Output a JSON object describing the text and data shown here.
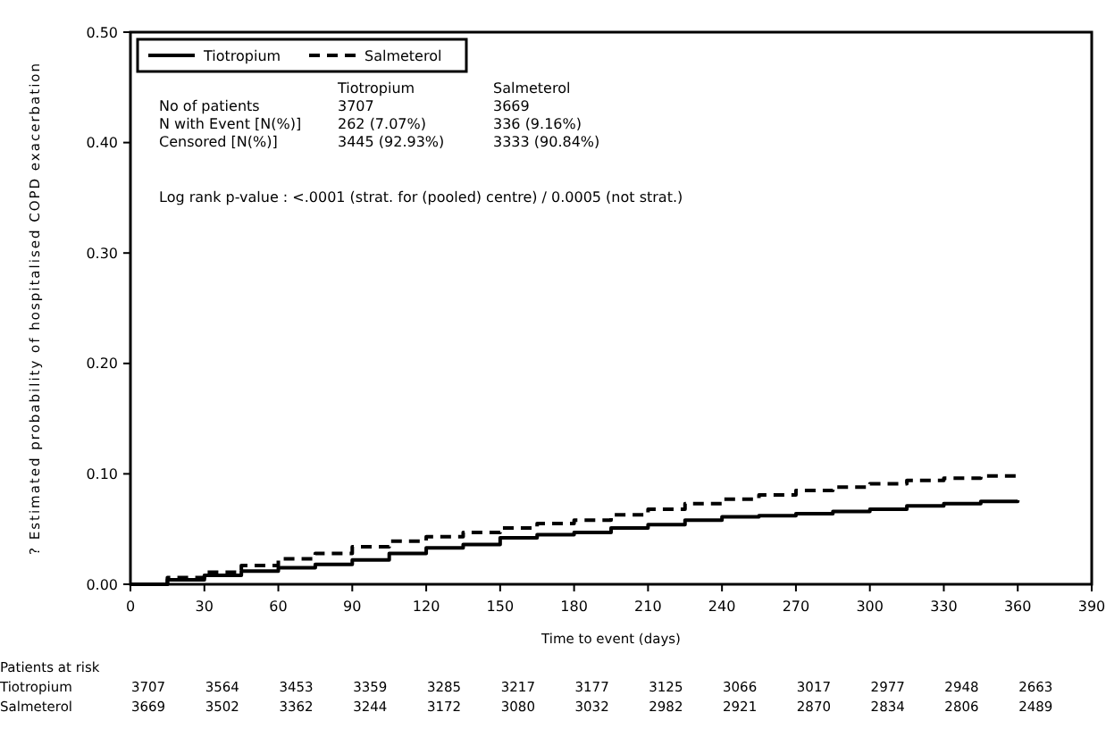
{
  "chart_data": {
    "type": "step",
    "xlabel": "Time to event (days)",
    "ylabel": "? Estimated probability of hospitalised COPD exacerbation",
    "x": [
      0,
      15,
      30,
      45,
      60,
      75,
      90,
      105,
      120,
      135,
      150,
      165,
      180,
      195,
      210,
      225,
      240,
      255,
      270,
      285,
      300,
      315,
      330,
      345,
      360
    ],
    "series": [
      {
        "name": "Tiotropium",
        "color": "#000000",
        "line_style": "solid",
        "values": [
          0,
          0.004,
          0.008,
          0.012,
          0.015,
          0.018,
          0.022,
          0.028,
          0.033,
          0.036,
          0.042,
          0.045,
          0.047,
          0.051,
          0.054,
          0.058,
          0.061,
          0.062,
          0.064,
          0.066,
          0.068,
          0.071,
          0.073,
          0.075,
          0.076
        ]
      },
      {
        "name": "Salmeterol",
        "color": "#000000",
        "line_style": "dashed",
        "values": [
          0,
          0.006,
          0.011,
          0.017,
          0.023,
          0.028,
          0.034,
          0.039,
          0.043,
          0.047,
          0.051,
          0.055,
          0.058,
          0.063,
          0.068,
          0.073,
          0.077,
          0.081,
          0.085,
          0.088,
          0.091,
          0.094,
          0.096,
          0.098,
          0.1
        ]
      }
    ],
    "xlim": [
      0,
      390
    ],
    "xticks": [
      0,
      30,
      60,
      90,
      120,
      150,
      180,
      210,
      240,
      270,
      300,
      330,
      360,
      390
    ],
    "ylim": [
      0,
      0.5
    ],
    "yticks": [
      {
        "value": 0,
        "label": "0.00"
      },
      {
        "value": 0.1,
        "label": "0.10"
      },
      {
        "value": 0.2,
        "label": "0.20"
      },
      {
        "value": 0.3,
        "label": "0.30"
      },
      {
        "value": 0.4,
        "label": "0.40"
      },
      {
        "value": 0.5,
        "label": "0.50"
      }
    ],
    "legend": "top left",
    "grid": false,
    "annotations": [
      "\tTiotropium\tSalmeterol",
      "No of patients\t3707\t3669",
      "N with Event [N(%)]\t262 (7.07%)\t336 (9.16%)",
      "Censored [N(%)]\t3445 (92.93%)\t3333 (90.84%)",
      "Log rank p-value : <.0001 (strat. for (pooled) centre) / 0.0005 (not strat.)",
      "Patients at risk",
      "Tiotropium\t3707\t3564\t3453\t3359\t3285\t3217\t3177\t3125\t3066\t3017\t2977\t2948\t2663",
      "Salmeterol\t3669\t3502\t3362\t3244\t3172\t3080\t3032\t2982\t2921\t2870\t2834\t2806\t2489"
    ]
  }
}
